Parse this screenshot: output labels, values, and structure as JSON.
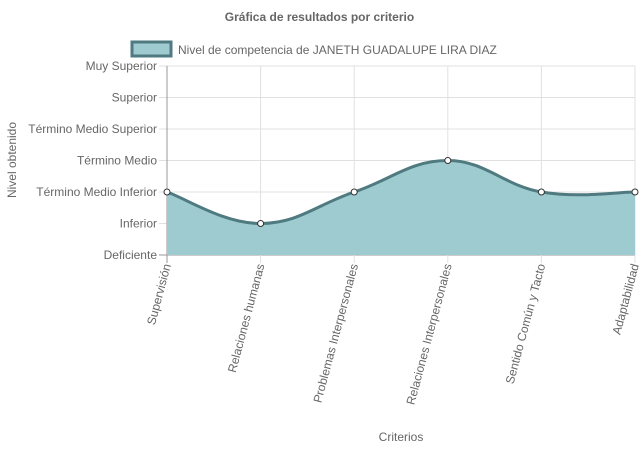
{
  "chart_data": {
    "type": "area",
    "title": "Gráfica de resultados por criterio",
    "xlabel": "Criterios",
    "ylabel": "Nivel obtenido",
    "categories": [
      "Supervisión",
      "Relaciones humanas",
      "Problemas Interpersonales",
      "Relaciones Interpersonales",
      "Sentido Común y Tacto",
      "Adaptabilidad"
    ],
    "y_levels": [
      "Deficiente",
      "Inferior",
      "Término Medio Inferior",
      "Término Medio",
      "Término Medio Superior",
      "Superior",
      "Muy Superior"
    ],
    "ylim": [
      0,
      6
    ],
    "series": [
      {
        "name": "Nivel de competencia de JANETH GUADALUPE LIRA DIAZ",
        "values": [
          2,
          1,
          2,
          3,
          2,
          2
        ]
      }
    ],
    "legend_position": "top",
    "grid": true,
    "colors": {
      "fill": "#9ecbcf",
      "line": "#4e7a80",
      "grid": "#e0e0e0",
      "zero": "#999999"
    }
  }
}
